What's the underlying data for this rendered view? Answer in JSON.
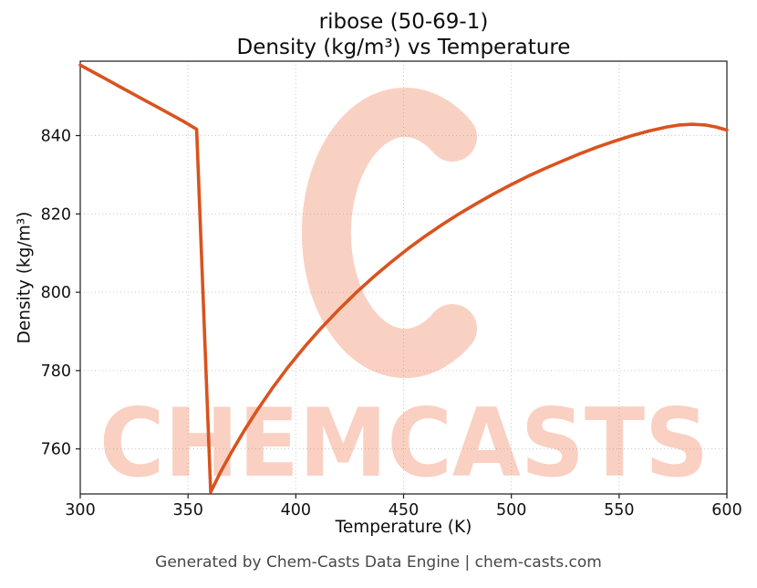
{
  "watermark": {
    "text": "CHEMCASTS",
    "color": "#f08560"
  },
  "footer": {
    "text": "Generated by Chem-Casts Data Engine | chem-casts.com"
  },
  "chart_data": {
    "type": "line",
    "title": "ribose (50-69-1)",
    "subtitle": "Density (kg/m³) vs Temperature",
    "xlabel": "Temperature (K)",
    "ylabel": "Density (kg/m³)",
    "xlim": [
      300,
      600
    ],
    "ylim": [
      748.5,
      859
    ],
    "xticks": [
      300,
      350,
      400,
      450,
      500,
      550,
      600
    ],
    "yticks": [
      760,
      780,
      800,
      820,
      840
    ],
    "grid": true,
    "grid_style": "dotted",
    "legend": "none",
    "line_color": "#d9531f",
    "series": [
      {
        "name": "density",
        "points": [
          [
            300,
            858
          ],
          [
            306,
            856.2
          ],
          [
            312,
            854.4
          ],
          [
            318,
            852.6
          ],
          [
            324,
            850.8
          ],
          [
            330,
            849.0
          ],
          [
            336,
            847.2
          ],
          [
            342,
            845.4
          ],
          [
            348,
            843.6
          ],
          [
            354,
            841.6
          ],
          [
            360.5,
            749
          ],
          [
            365,
            754
          ],
          [
            370,
            759
          ],
          [
            376,
            764.6
          ],
          [
            382,
            769.8
          ],
          [
            389,
            775.4
          ],
          [
            396,
            780.6
          ],
          [
            404,
            786
          ],
          [
            412,
            791
          ],
          [
            420,
            795.6
          ],
          [
            428,
            799.9
          ],
          [
            436,
            803.9
          ],
          [
            444,
            807.6
          ],
          [
            452,
            811.1
          ],
          [
            460,
            814.3
          ],
          [
            468,
            817.3
          ],
          [
            476,
            820.1
          ],
          [
            484,
            822.7
          ],
          [
            492,
            825.2
          ],
          [
            500,
            827.5
          ],
          [
            508,
            829.7
          ],
          [
            516,
            831.7
          ],
          [
            524,
            833.6
          ],
          [
            532,
            835.4
          ],
          [
            540,
            837.1
          ],
          [
            548,
            838.6
          ],
          [
            556,
            840.0
          ],
          [
            564,
            841.2
          ],
          [
            572,
            842.2
          ],
          [
            578,
            842.7
          ],
          [
            584,
            842.9
          ],
          [
            590,
            842.7
          ],
          [
            595,
            842.2
          ],
          [
            600,
            841.4
          ]
        ]
      }
    ]
  }
}
